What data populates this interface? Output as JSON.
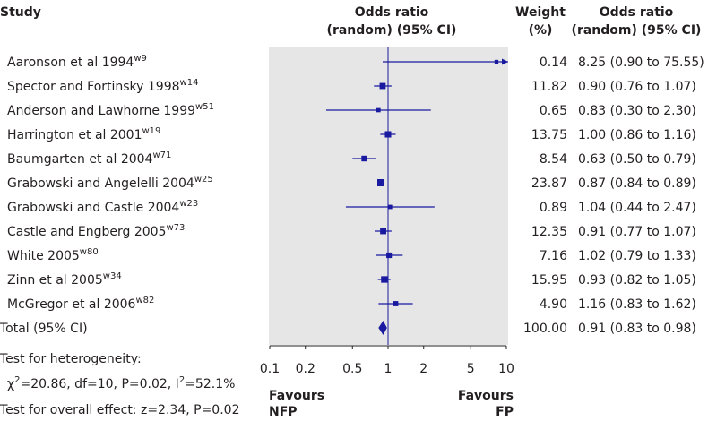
{
  "chart_data": {
    "type": "forest",
    "headers": {
      "study": "Study",
      "or_plot_line1": "Odds ratio",
      "or_plot_line2": "(random) (95% CI)",
      "weight_line1": "Weight",
      "weight_line2": "(%)",
      "or_text_line1": "Odds ratio",
      "or_text_line2": "(random) (95% CI)"
    },
    "studies": [
      {
        "name": "Aaronson et al 1994",
        "ref": "w9",
        "weight": "0.14",
        "ci_text": "8.25 (0.90 to 75.55)",
        "or": 8.25,
        "lower": 0.9,
        "upper": 75.55
      },
      {
        "name": "Spector and Fortinsky 1998",
        "ref": "w14",
        "weight": "11.82",
        "ci_text": "0.90 (0.76 to 1.07)",
        "or": 0.9,
        "lower": 0.76,
        "upper": 1.07
      },
      {
        "name": "Anderson and Lawhorne 1999",
        "ref": "w51",
        "weight": "0.65",
        "ci_text": "0.83 (0.30 to 2.30)",
        "or": 0.83,
        "lower": 0.3,
        "upper": 2.3
      },
      {
        "name": "Harrington et al 2001",
        "ref": "w19",
        "weight": "13.75",
        "ci_text": "1.00 (0.86 to 1.16)",
        "or": 1.0,
        "lower": 0.86,
        "upper": 1.16
      },
      {
        "name": "Baumgarten et al 2004",
        "ref": "w71",
        "weight": "8.54",
        "ci_text": "0.63 (0.50 to 0.79)",
        "or": 0.63,
        "lower": 0.5,
        "upper": 0.79
      },
      {
        "name": "Grabowski and Angelelli 2004",
        "ref": "w25",
        "weight": "23.87",
        "ci_text": "0.87 (0.84 to 0.89)",
        "or": 0.87,
        "lower": 0.84,
        "upper": 0.89
      },
      {
        "name": "Grabowski and Castle 2004",
        "ref": "w23",
        "weight": "0.89",
        "ci_text": "1.04 (0.44 to 2.47)",
        "or": 1.04,
        "lower": 0.44,
        "upper": 2.47
      },
      {
        "name": "Castle and Engberg 2005",
        "ref": "w73",
        "weight": "12.35",
        "ci_text": "0.91 (0.77 to 1.07)",
        "or": 0.91,
        "lower": 0.77,
        "upper": 1.07
      },
      {
        "name": "White 2005",
        "ref": "w80",
        "weight": "7.16",
        "ci_text": "1.02 (0.79 to 1.33)",
        "or": 1.02,
        "lower": 0.79,
        "upper": 1.33
      },
      {
        "name": "Zinn et al 2005",
        "ref": "w34",
        "weight": "15.95",
        "ci_text": "0.93 (0.82 to 1.05)",
        "or": 0.93,
        "lower": 0.82,
        "upper": 1.05
      },
      {
        "name": "McGregor et al 2006",
        "ref": "w82",
        "weight": "4.90",
        "ci_text": "1.16 (0.83 to 1.62)",
        "or": 1.16,
        "lower": 0.83,
        "upper": 1.62
      }
    ],
    "total": {
      "name": "Total (95% CI)",
      "weight": "100.00",
      "ci_text": "0.91 (0.83 to 0.98)",
      "or": 0.91,
      "lower": 0.83,
      "upper": 0.98
    },
    "heterogeneity": {
      "label": "Test for heterogeneity:",
      "chi_symbol": "χ",
      "chi_sup": "2",
      "chi_rest": "=20.86, df=10, P=0.02, I",
      "i_sup": "2",
      "i_rest": "=52.1%"
    },
    "overall_effect": "Test for overall effect: z=2.34, P=0.02",
    "x_axis": {
      "scale": "log",
      "range": [
        0.1,
        10
      ],
      "ticks": [
        0.1,
        0.2,
        0.5,
        1,
        2,
        5,
        10
      ],
      "tick_labels": [
        "0.1",
        "0.2",
        "0.5",
        "1",
        "2",
        "5",
        "10"
      ]
    },
    "favours_left": {
      "line1": "Favours",
      "line2": "NFP"
    },
    "favours_right": {
      "line1": "Favours",
      "line2": "FP"
    },
    "colors": {
      "mark": "#1a1aa0",
      "panel": "#e6e6e6",
      "text": "#231f20"
    }
  }
}
